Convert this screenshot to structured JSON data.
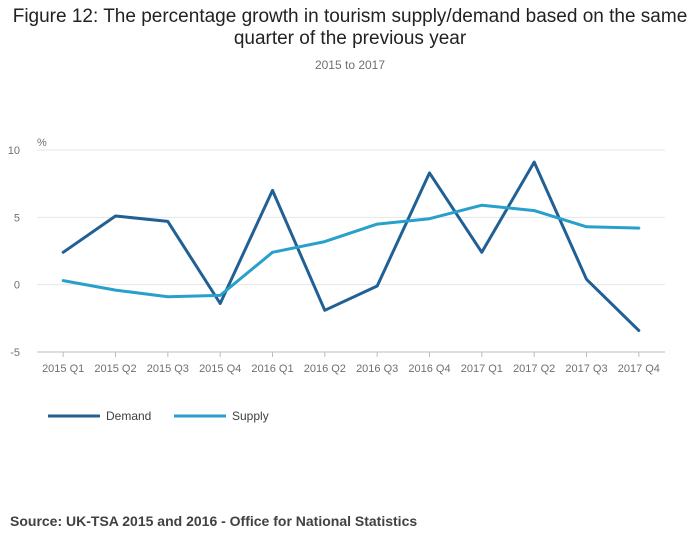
{
  "chart_data": {
    "type": "line",
    "title": "Figure 12: The percentage growth in tourism supply/demand based on the same quarter of the previous year",
    "subtitle": "2015 to 2017",
    "ylabel": "%",
    "xlabel": "",
    "ylim": [
      -5,
      10
    ],
    "yticks": [
      -5,
      0,
      5,
      10
    ],
    "categories": [
      "2015 Q1",
      "2015 Q2",
      "2015 Q3",
      "2015 Q4",
      "2016 Q1",
      "2016 Q2",
      "2016 Q3",
      "2016 Q4",
      "2017 Q1",
      "2017 Q2",
      "2017 Q3",
      "2017 Q4"
    ],
    "series": [
      {
        "name": "Demand",
        "color": "#206095",
        "values": [
          2.4,
          5.1,
          4.7,
          -1.4,
          7.0,
          -1.9,
          -0.1,
          8.3,
          2.4,
          9.1,
          0.4,
          -3.4
        ]
      },
      {
        "name": "Supply",
        "color": "#27a0cc",
        "values": [
          0.3,
          -0.4,
          -0.9,
          -0.8,
          2.4,
          3.2,
          4.5,
          4.9,
          5.9,
          5.5,
          4.3,
          4.2
        ]
      }
    ],
    "legend_position": "bottom-left",
    "grid": true
  },
  "source": "Source: UK-TSA 2015 and 2016 - Office for National Statistics"
}
